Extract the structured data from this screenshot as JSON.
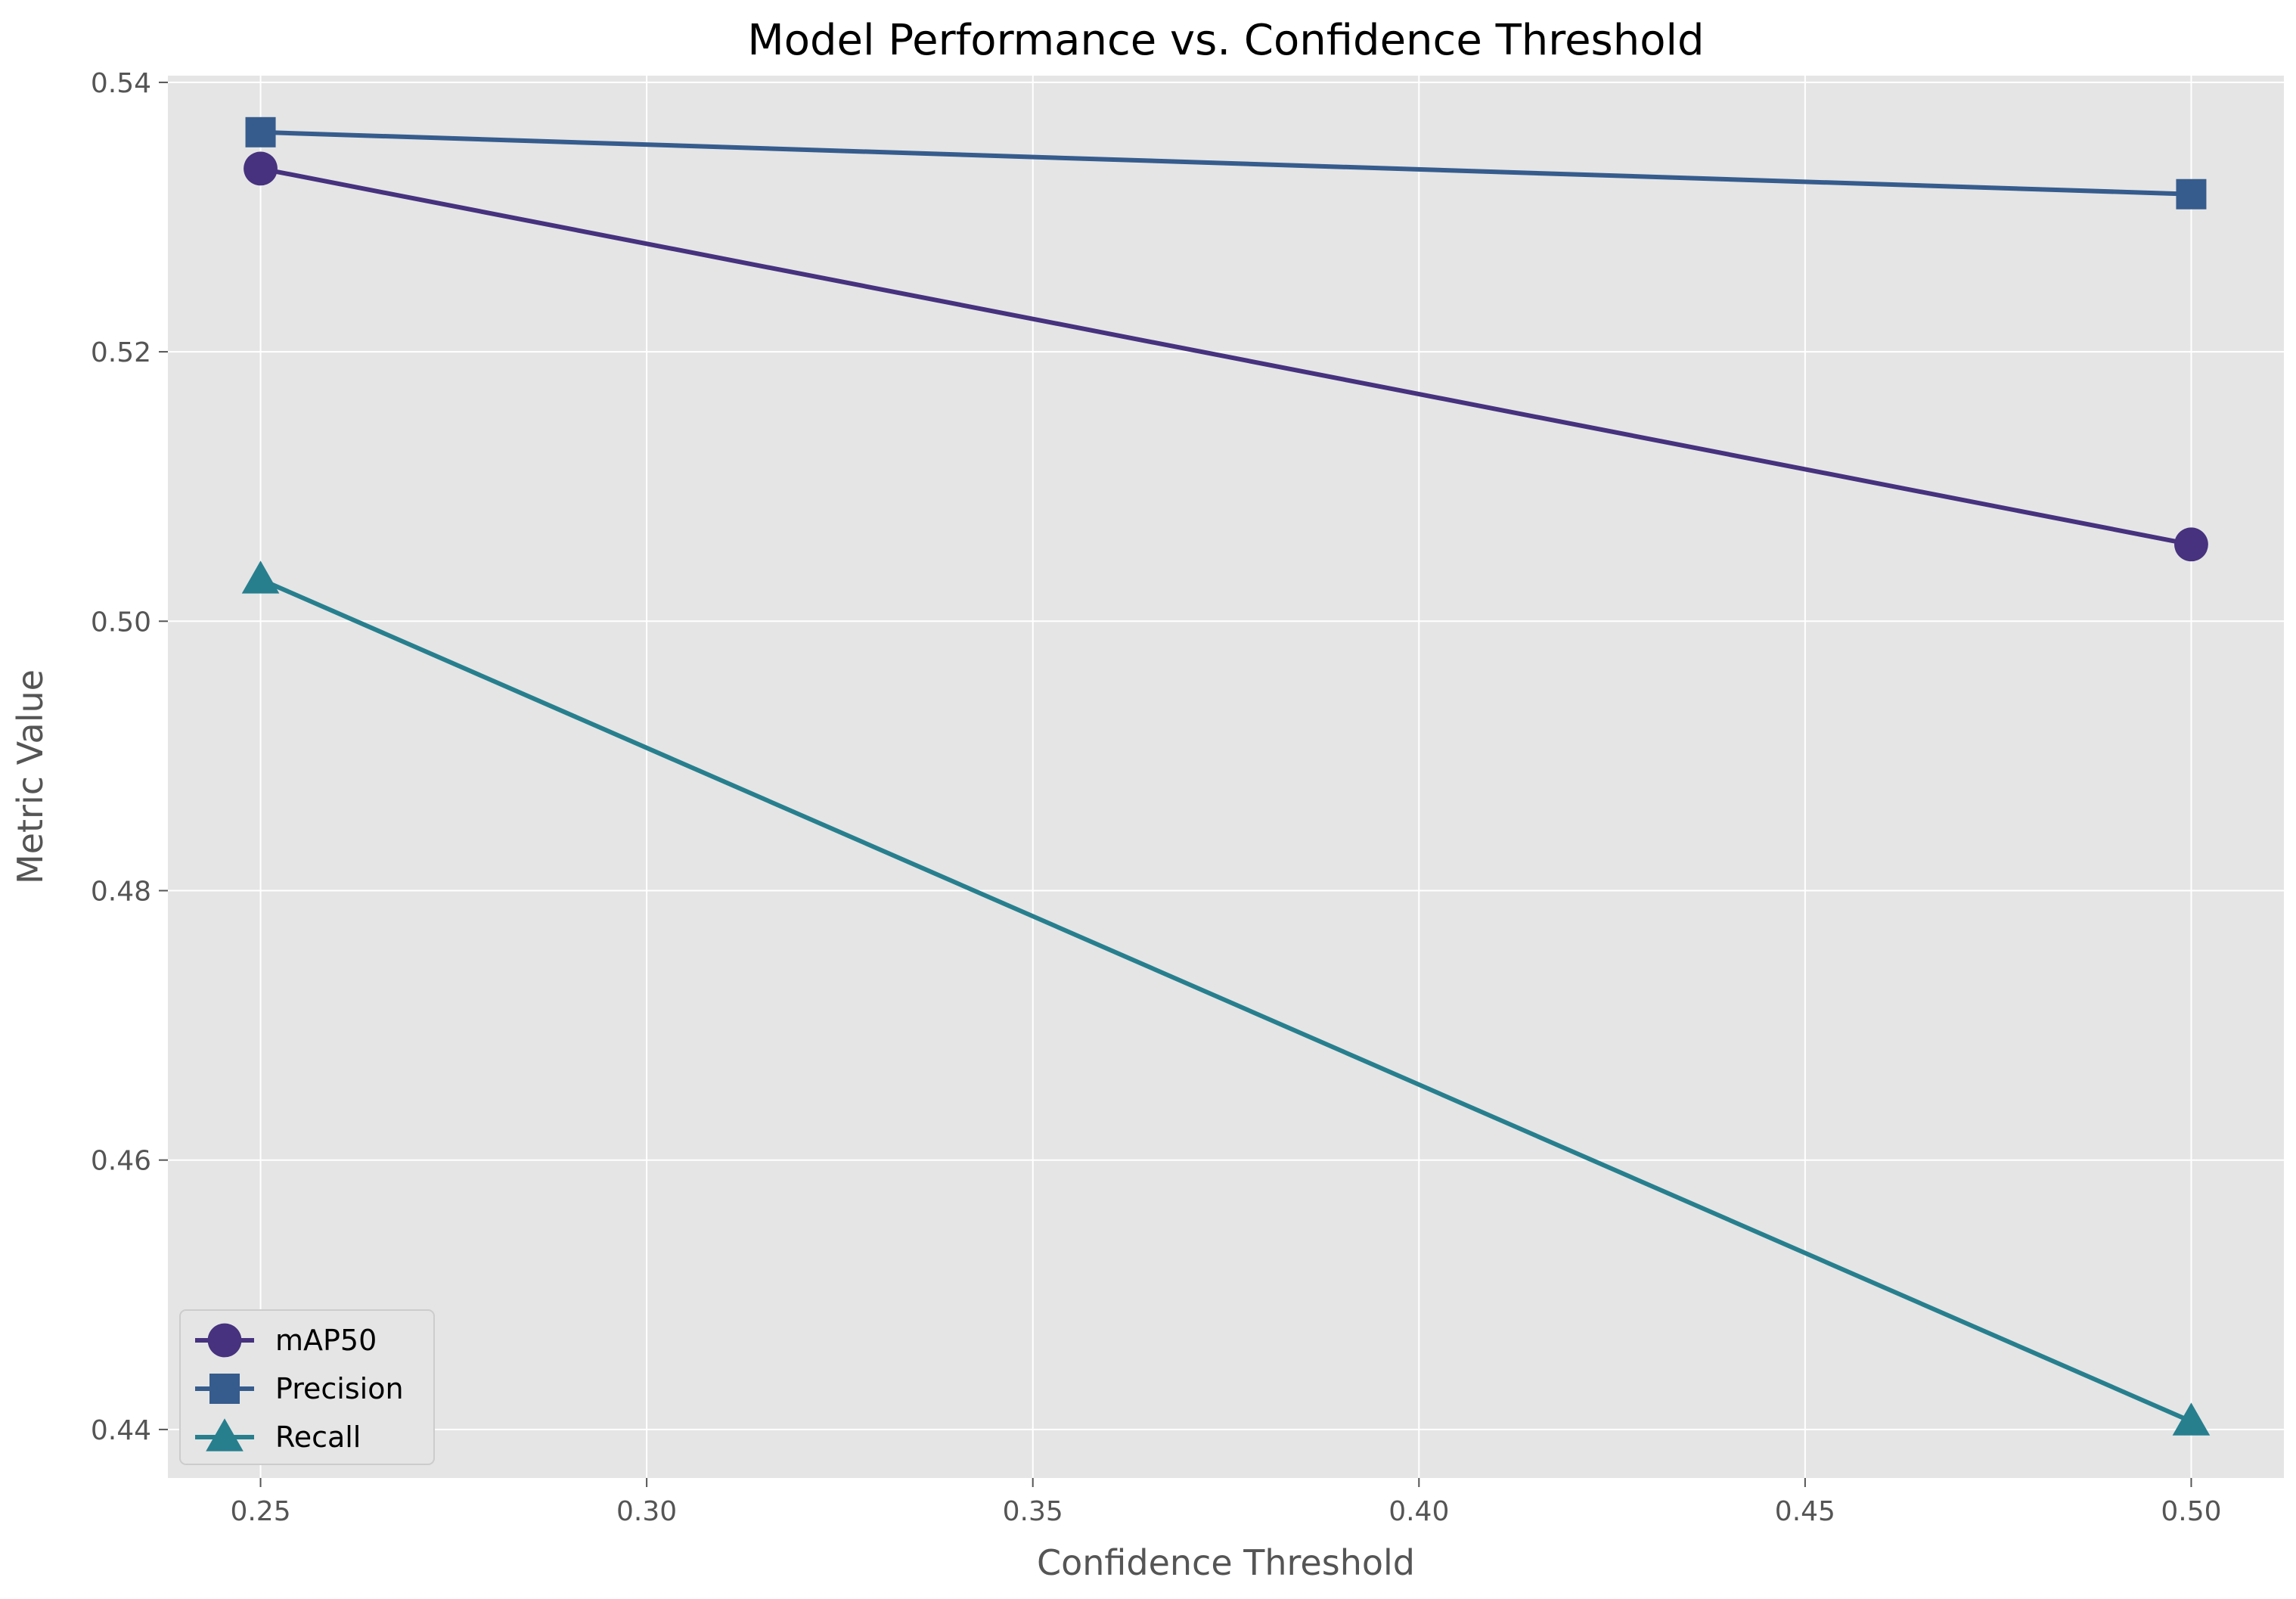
{
  "chart_data": {
    "type": "line",
    "title": "Model Performance vs. Confidence Threshold",
    "xlabel": "Confidence Threshold",
    "ylabel": "Metric Value",
    "xlim": [
      0.238,
      0.512
    ],
    "ylim": [
      0.4364,
      0.5405
    ],
    "xticks": [
      0.25,
      0.3,
      0.35,
      0.4,
      0.45,
      0.5
    ],
    "xtick_labels": [
      "0.25",
      "0.30",
      "0.35",
      "0.40",
      "0.45",
      "0.50"
    ],
    "yticks": [
      0.44,
      0.46,
      0.48,
      0.5,
      0.52,
      0.54
    ],
    "ytick_labels": [
      "0.44",
      "0.46",
      "0.48",
      "0.50",
      "0.52",
      "0.54"
    ],
    "x": [
      0.25,
      0.5
    ],
    "series": [
      {
        "name": "mAP50",
        "values": [
          0.5336,
          0.5057
        ],
        "color": "#46327e",
        "marker": "circle"
      },
      {
        "name": "Precision",
        "values": [
          0.5363,
          0.5317
        ],
        "color": "#365c8d",
        "marker": "square"
      },
      {
        "name": "Recall",
        "values": [
          0.5031,
          0.4406
        ],
        "color": "#277f8e",
        "marker": "triangle"
      }
    ],
    "grid": true,
    "legend_position": "lower-left",
    "plot_background": "#e5e5e5"
  }
}
